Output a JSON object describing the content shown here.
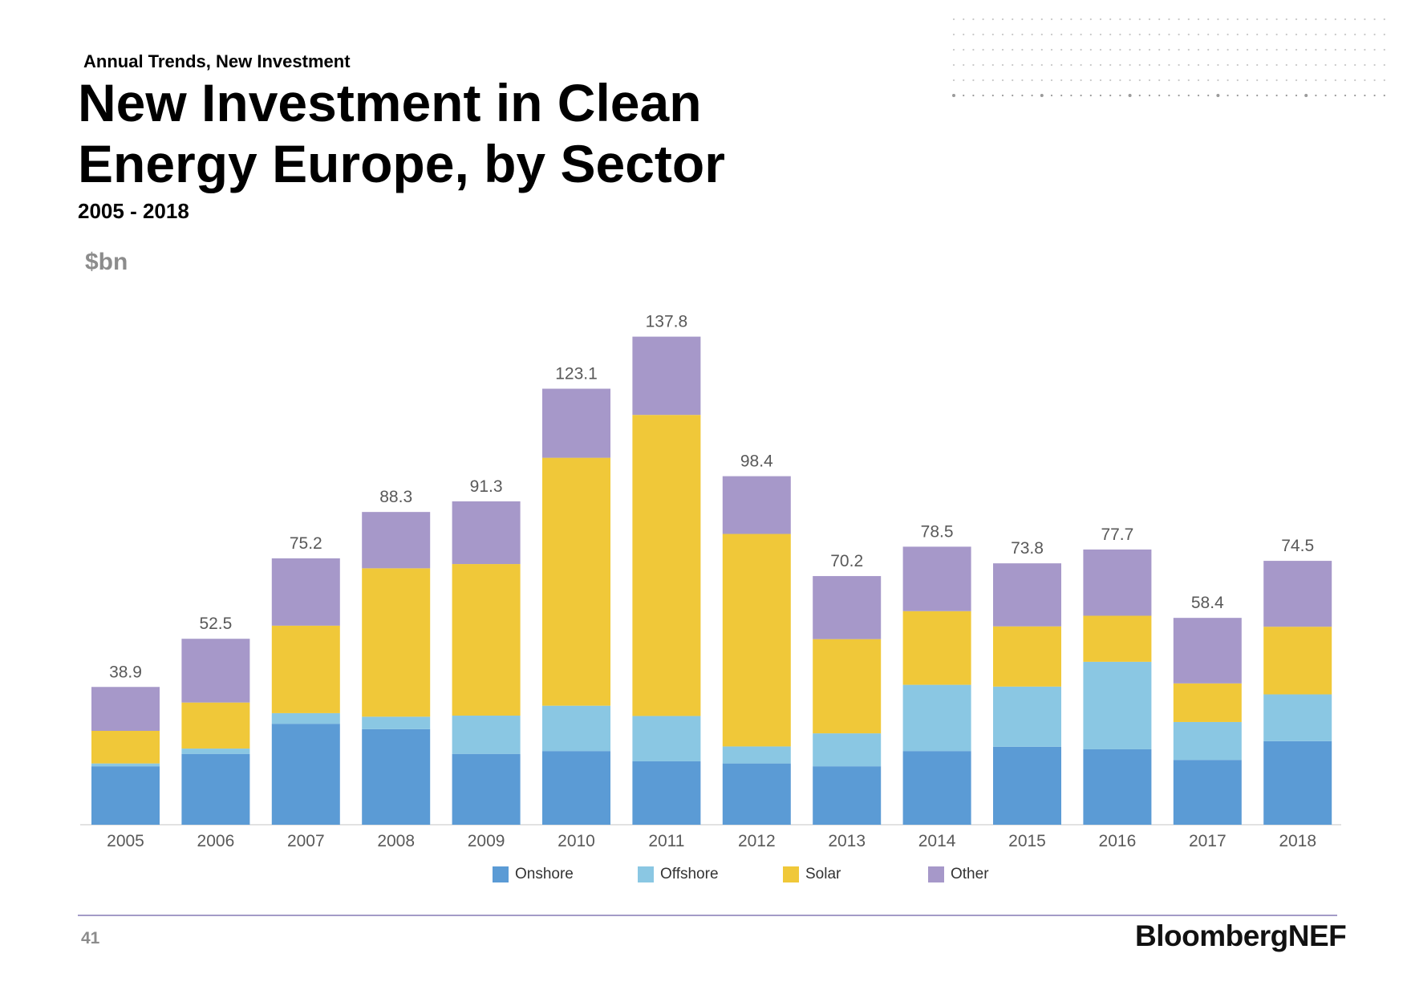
{
  "kicker": "Annual Trends, New Investment",
  "title": "New Investment in Clean Energy Europe, by Sector",
  "subtitle": "2005 - 2018",
  "unit_label": "$bn",
  "footer": {
    "page_number": "41",
    "brand": "BloombergNEF"
  },
  "colors": {
    "onshore": "#5b9bd5",
    "offshore": "#8ac7e3",
    "solar": "#f0c839",
    "other": "#a698c9",
    "rule": "#a39bc7"
  },
  "chart_data": {
    "type": "bar",
    "stacked": true,
    "categories": [
      "2005",
      "2006",
      "2007",
      "2008",
      "2009",
      "2010",
      "2011",
      "2012",
      "2013",
      "2014",
      "2015",
      "2016",
      "2017",
      "2018"
    ],
    "series": [
      {
        "name": "Onshore",
        "color": "#5b9bd5",
        "values": [
          16.5,
          20.0,
          28.5,
          27.0,
          20.0,
          20.8,
          17.9,
          17.3,
          16.5,
          20.8,
          22.0,
          21.3,
          18.3,
          23.6
        ]
      },
      {
        "name": "Offshore",
        "color": "#8ac7e3",
        "values": [
          0.8,
          1.5,
          3.0,
          3.5,
          10.8,
          12.8,
          12.8,
          4.8,
          9.3,
          18.7,
          17.0,
          24.7,
          10.7,
          13.2
        ]
      },
      {
        "name": "Solar",
        "color": "#f0c839",
        "values": [
          9.2,
          13.0,
          24.7,
          41.9,
          42.8,
          70.0,
          85.0,
          60.0,
          26.6,
          20.8,
          17.0,
          13.0,
          10.9,
          19.1
        ]
      },
      {
        "name": "Other",
        "color": "#a698c9",
        "values": [
          12.4,
          18.0,
          19.0,
          15.9,
          17.7,
          19.5,
          22.1,
          16.3,
          17.8,
          18.2,
          17.8,
          18.7,
          18.5,
          18.6
        ]
      }
    ],
    "totals": [
      38.9,
      52.5,
      75.2,
      88.3,
      91.3,
      123.1,
      137.8,
      98.4,
      70.2,
      78.5,
      73.8,
      77.7,
      58.4,
      74.5
    ],
    "ylabel": "$bn",
    "ylim": [
      0,
      140
    ],
    "grid": false,
    "legend": "bottom"
  }
}
